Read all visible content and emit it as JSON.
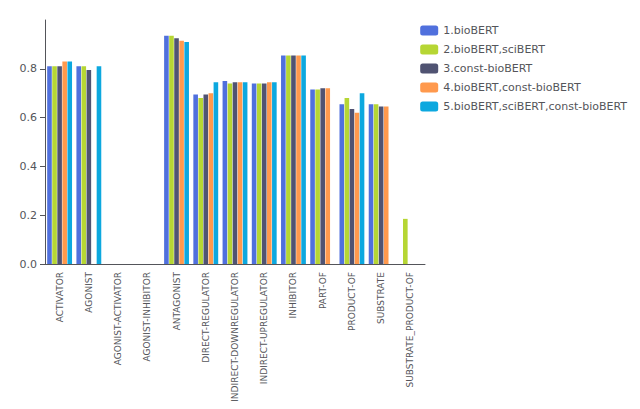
{
  "chart_data": {
    "type": "bar",
    "categories": [
      "ACTIVATOR",
      "AGONIST",
      "AGONIST-ACTIVATOR",
      "AGONIST-INHIBITOR",
      "ANTAGONIST",
      "DIRECT-REGULATOR",
      "INDIRECT-DOWNREGULATOR",
      "INDIRECT-UPREGULATOR",
      "INHIBITOR",
      "PART-OF",
      "PRODUCT-OF",
      "SUBSTRATE",
      "SUBSTRATE_PRODUCT-OF"
    ],
    "series": [
      {
        "name": "1.bioBERT",
        "values": [
          0.81,
          0.81,
          0.0,
          0.0,
          0.935,
          0.695,
          0.75,
          0.74,
          0.855,
          0.715,
          0.655,
          0.655,
          0.0
        ]
      },
      {
        "name": "2.bioBERT,sciBERT",
        "values": [
          0.81,
          0.81,
          0.0,
          0.0,
          0.935,
          0.68,
          0.74,
          0.74,
          0.855,
          0.715,
          0.68,
          0.655,
          0.185
        ]
      },
      {
        "name": "3.const-bioBERT",
        "values": [
          0.81,
          0.795,
          0.0,
          0.0,
          0.925,
          0.695,
          0.745,
          0.74,
          0.855,
          0.72,
          0.635,
          0.645,
          0.0
        ]
      },
      {
        "name": "4.bioBERT,const-bioBERT",
        "values": [
          0.83,
          0.0,
          0.0,
          0.0,
          0.915,
          0.7,
          0.745,
          0.745,
          0.855,
          0.72,
          0.62,
          0.645,
          0.0
        ]
      },
      {
        "name": "5.bioBERT,sciBERT,const-bioBERT",
        "values": [
          0.83,
          0.81,
          0.0,
          0.0,
          0.91,
          0.745,
          0.745,
          0.745,
          0.855,
          0.0,
          0.7,
          0.0,
          0.0
        ]
      }
    ],
    "ylim": [
      0.0,
      1.0
    ],
    "yticks": [
      {
        "value": 0.0,
        "label": "0.0"
      },
      0.2,
      0.4,
      0.6,
      0.8
    ],
    "grid": false,
    "legend": "right"
  }
}
